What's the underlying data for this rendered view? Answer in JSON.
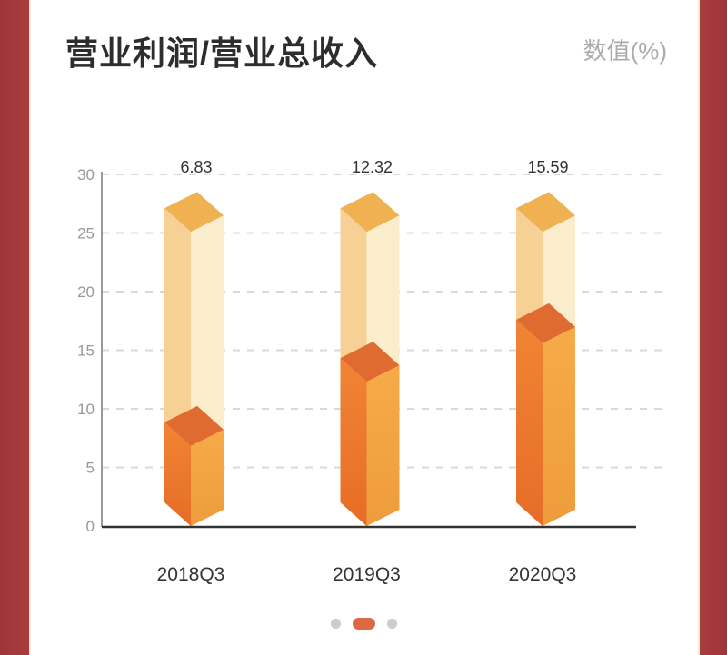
{
  "header": {
    "title": "营业利润/营业总收入",
    "unit_label": "数值(%)"
  },
  "chart_data": {
    "type": "bar",
    "style": "3d-prism-columns-with-background-track",
    "title": "营业利润/营业总收入",
    "ylabel": "数值(%)",
    "categories": [
      "2018Q3",
      "2019Q3",
      "2020Q3"
    ],
    "values": [
      6.83,
      12.32,
      15.59
    ],
    "value_labels": [
      "6.83",
      "12.32",
      "15.59"
    ],
    "ylim": [
      0,
      30
    ],
    "yticks": [
      0,
      5,
      10,
      15,
      20,
      25,
      30
    ],
    "grid": "horizontal-dashed",
    "background_column_top": 25.1,
    "legend": "none"
  },
  "carousel": {
    "count": 3,
    "active_index": 1
  },
  "colors": {
    "frame_red": "#a43a3c",
    "bar_top": "#e06b31",
    "bar_left_top": "#f18434",
    "bar_left_bottom": "#e66d27",
    "bar_right_top": "#f6ab48",
    "bar_right_bottom": "#ee9c3c",
    "track_top": "#f0b152",
    "track_left": "#f7d096",
    "track_right": "#fbeccb",
    "grid_line": "#d9d9d9",
    "y_axis_line": "#999999",
    "x_axis_line": "#333333",
    "tick_text": "#999999",
    "value_text": "#333333",
    "category_text": "#333333",
    "dot_inactive": "#cbcbcb",
    "dot_active": "#dc6944"
  }
}
